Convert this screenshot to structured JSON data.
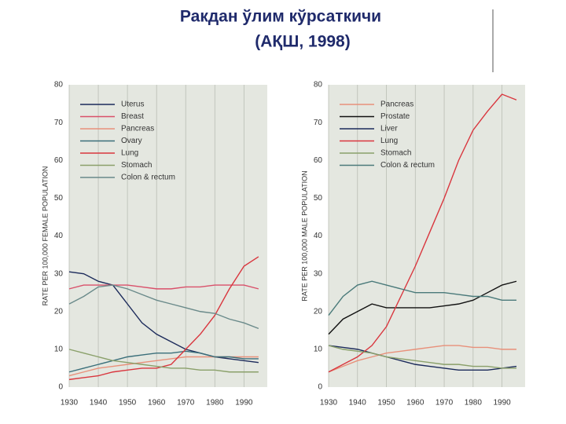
{
  "slide_title": [
    "Ракдан ўлим кўрсаткичи",
    "(АҚШ, 1998)"
  ],
  "chart_data": [
    {
      "type": "line",
      "y_label": "RATE PER 100,000 FEMALE POPULATION",
      "x": [
        1930,
        1935,
        1940,
        1945,
        1950,
        1955,
        1960,
        1965,
        1970,
        1975,
        1980,
        1985,
        1990,
        1995
      ],
      "xlim": [
        1930,
        1998
      ],
      "ylim": [
        0,
        80
      ],
      "xticks": [
        1930,
        1940,
        1950,
        1960,
        1970,
        1980,
        1990
      ],
      "yticks": [
        0,
        10,
        20,
        30,
        40,
        50,
        60,
        70,
        80
      ],
      "grid": true,
      "series": [
        {
          "name": "Uterus",
          "color": "#1b2a5a",
          "values": [
            30.5,
            30,
            28,
            27,
            22,
            17,
            14,
            12,
            10,
            9,
            8,
            7.5,
            7,
            6.5
          ]
        },
        {
          "name": "Breast",
          "color": "#d9506a",
          "values": [
            26,
            27,
            27,
            27,
            27,
            26.5,
            26,
            26,
            26.5,
            26.5,
            27,
            27,
            27,
            26
          ]
        },
        {
          "name": "Pancreas",
          "color": "#e8907a",
          "values": [
            3,
            4,
            5,
            5.5,
            6,
            6.5,
            7,
            7.5,
            8,
            8,
            8,
            8,
            8,
            8
          ]
        },
        {
          "name": "Ovary",
          "color": "#3a6f7a",
          "values": [
            4,
            5,
            6,
            7,
            8,
            8.5,
            9,
            9,
            9.5,
            9,
            8,
            8,
            7.5,
            7.5
          ]
        },
        {
          "name": "Lung",
          "color": "#d9363e",
          "values": [
            2,
            2.5,
            3,
            4,
            4.5,
            5,
            5,
            6,
            10,
            14,
            19,
            26,
            32,
            34.5
          ]
        },
        {
          "name": "Stomach",
          "color": "#8aa06a",
          "values": [
            10,
            9,
            8,
            7,
            6.5,
            6,
            5.5,
            5,
            5,
            4.5,
            4.5,
            4,
            4,
            4
          ]
        },
        {
          "name": "Colon & rectum",
          "color": "#6a8a8a",
          "values": [
            22,
            24,
            26.5,
            27,
            26,
            24.5,
            23,
            22,
            21,
            20,
            19.5,
            18,
            17,
            15.5
          ]
        }
      ]
    },
    {
      "type": "line",
      "y_label": "RATE PER 100,000 MALE POPULATION",
      "x": [
        1930,
        1935,
        1940,
        1945,
        1950,
        1955,
        1960,
        1965,
        1970,
        1975,
        1980,
        1985,
        1990,
        1995
      ],
      "xlim": [
        1930,
        1998
      ],
      "ylim": [
        0,
        80
      ],
      "xticks": [
        1930,
        1940,
        1950,
        1960,
        1970,
        1980,
        1990
      ],
      "yticks": [
        0,
        10,
        20,
        30,
        40,
        50,
        60,
        70,
        80
      ],
      "grid": true,
      "series": [
        {
          "name": "Pancreas",
          "color": "#e8907a",
          "values": [
            4,
            5.5,
            7,
            8,
            9,
            9.5,
            10,
            10.5,
            11,
            11,
            10.5,
            10.5,
            10,
            10
          ]
        },
        {
          "name": "Prostate",
          "color": "#111111",
          "values": [
            14,
            18,
            20,
            22,
            21,
            21,
            21,
            21,
            21.5,
            22,
            23,
            25,
            27,
            28
          ]
        },
        {
          "name": "Liver",
          "color": "#1b2a5a",
          "values": [
            11,
            10.5,
            10,
            9,
            8,
            7,
            6,
            5.5,
            5,
            4.5,
            4.5,
            4.5,
            5,
            5.5
          ]
        },
        {
          "name": "Lung",
          "color": "#d9363e",
          "values": [
            4,
            6,
            8,
            11,
            16,
            24,
            32,
            41,
            50,
            60,
            68,
            73,
            77.5,
            76
          ]
        },
        {
          "name": "Stomach",
          "color": "#8aa06a",
          "values": [
            11,
            10,
            9.5,
            9,
            8,
            7.5,
            7,
            6.5,
            6,
            6,
            5.5,
            5.5,
            5,
            5
          ]
        },
        {
          "name": "Colon & rectum",
          "color": "#4a7a7a",
          "values": [
            19,
            24,
            27,
            28,
            27,
            26,
            25,
            25,
            25,
            24.5,
            24,
            24,
            23,
            23
          ]
        }
      ]
    }
  ]
}
